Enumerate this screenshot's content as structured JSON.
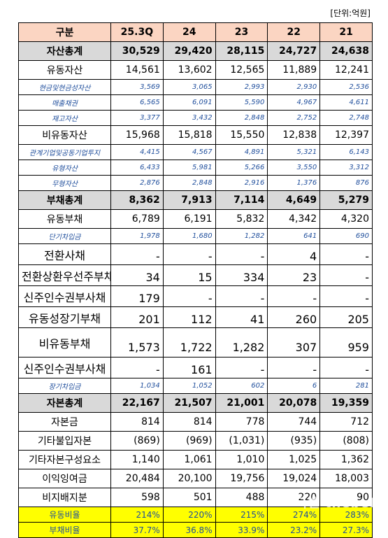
{
  "unit_label": "[단위:억원]",
  "header": [
    "구분",
    "25.3Q",
    "24",
    "23",
    "22",
    "21"
  ],
  "rows": [
    {
      "type": "total",
      "label": "자산총계",
      "values": [
        "30,529",
        "29,420",
        "28,115",
        "24,727",
        "24,638"
      ]
    },
    {
      "type": "main",
      "label": "유동자산",
      "values": [
        "14,561",
        "13,602",
        "12,565",
        "11,889",
        "12,241"
      ]
    },
    {
      "type": "sub",
      "label": "현금및현금성자산",
      "values": [
        "3,569",
        "3,065",
        "2,993",
        "2,930",
        "2,536"
      ]
    },
    {
      "type": "sub",
      "label": "매출채권",
      "values": [
        "6,565",
        "6,091",
        "5,590",
        "4,967",
        "4,611"
      ]
    },
    {
      "type": "sub",
      "label": "재고자산",
      "values": [
        "3,377",
        "3,432",
        "2,848",
        "2,752",
        "2,748"
      ]
    },
    {
      "type": "main",
      "label": "비유동자산",
      "values": [
        "15,968",
        "15,818",
        "15,550",
        "12,838",
        "12,397"
      ]
    },
    {
      "type": "sub",
      "label": "관계기업및공동기업투지",
      "values": [
        "4,415",
        "4,567",
        "4,891",
        "5,321",
        "6,143"
      ]
    },
    {
      "type": "sub",
      "label": "유형자산",
      "values": [
        "6,433",
        "5,981",
        "5,266",
        "3,550",
        "3,312"
      ]
    },
    {
      "type": "sub",
      "label": "무형자산",
      "values": [
        "2,876",
        "2,848",
        "2,916",
        "1,376",
        "876"
      ]
    },
    {
      "type": "total",
      "label": "부채총계",
      "values": [
        "8,362",
        "7,913",
        "7,114",
        "4,649",
        "5,279"
      ]
    },
    {
      "type": "main",
      "label": "유동부채",
      "values": [
        "6,789",
        "6,191",
        "5,832",
        "4,342",
        "4,320"
      ]
    },
    {
      "type": "sub",
      "label": "단기차입금",
      "values": [
        "1,978",
        "1,680",
        "1,282",
        "641",
        "690"
      ]
    },
    {
      "type": "sub-tall",
      "label": "전환사채",
      "values": [
        "-",
        "-",
        "-",
        "4",
        "-"
      ]
    },
    {
      "type": "sub-tall",
      "label": "전환상환우선주부채",
      "values": [
        "34",
        "15",
        "334",
        "23",
        "-"
      ]
    },
    {
      "type": "sub-tall",
      "label": "신주인수권부사채",
      "values": [
        "179",
        "-",
        "-",
        "-",
        "-"
      ]
    },
    {
      "type": "sub-tall",
      "label": "유동성장기부채",
      "values": [
        "201",
        "112",
        "41",
        "260",
        "205"
      ]
    },
    {
      "type": "main-tall",
      "label": "비유동부채",
      "values": [
        "1,573",
        "1,722",
        "1,282",
        "307",
        "959"
      ]
    },
    {
      "type": "sub-tall",
      "label": "신주인수권부사채",
      "values": [
        "-",
        "161",
        "-",
        "-",
        "-"
      ]
    },
    {
      "type": "sub",
      "label": "장기차입금",
      "values": [
        "1,034",
        "1,052",
        "602",
        "6",
        "281"
      ]
    },
    {
      "type": "total",
      "label": "자본총계",
      "values": [
        "22,167",
        "21,507",
        "21,001",
        "20,078",
        "19,359"
      ]
    },
    {
      "type": "main",
      "label": "자본금",
      "values": [
        "814",
        "814",
        "778",
        "744",
        "712"
      ]
    },
    {
      "type": "main",
      "label": "기타불입자본",
      "values": [
        "(869)",
        "(969)",
        "(1,031)",
        "(935)",
        "(808)"
      ]
    },
    {
      "type": "main",
      "label": "기타자본구성요소",
      "values": [
        "1,140",
        "1,061",
        "1,010",
        "1,025",
        "1,362"
      ]
    },
    {
      "type": "main",
      "label": "이익잉여금",
      "values": [
        "20,484",
        "20,100",
        "19,756",
        "19,024",
        "18,003"
      ]
    },
    {
      "type": "main",
      "label": "비지배지분",
      "values": [
        "598",
        "501",
        "488",
        "220",
        "90"
      ]
    },
    {
      "type": "ratio",
      "label": "유동비율",
      "values": [
        "214%",
        "220%",
        "215%",
        "274%",
        "283%"
      ]
    },
    {
      "type": "ratio",
      "label": "부채비율",
      "values": [
        "37.7%",
        "36.8%",
        "33.9%",
        "23.2%",
        "27.3%"
      ]
    }
  ],
  "watermark": "더벨 thebell",
  "colors": {
    "header_bg": "#fbd5c2",
    "total_bg": "#d9d9d9",
    "ratio_bg": "#ffff00",
    "sub_text": "#1f4e9c"
  }
}
